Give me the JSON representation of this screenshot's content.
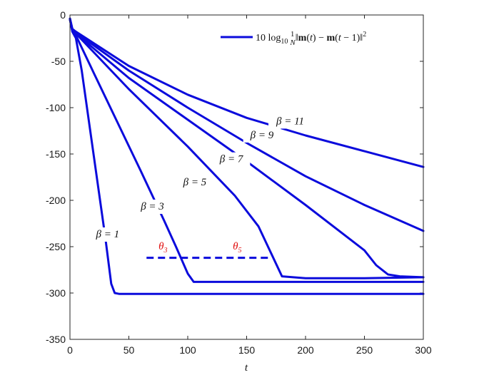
{
  "chart_data": {
    "type": "line",
    "title": "",
    "xlabel": "t",
    "ylabel": "",
    "xlim": [
      0,
      300
    ],
    "ylim": [
      -350,
      0
    ],
    "xticks": [
      0,
      50,
      100,
      150,
      200,
      250,
      300
    ],
    "yticks": [
      0,
      -50,
      -100,
      -150,
      -200,
      -250,
      -300,
      -350
    ],
    "legend": {
      "label": "10 log10 (1/N) ||m(t) − m(t−1)||²",
      "position": "top-right"
    },
    "series_color": "#0b0bdc",
    "series": [
      {
        "name": "β = 1",
        "x": [
          0,
          2,
          5,
          10,
          20,
          30,
          35,
          38,
          42,
          50,
          100,
          150,
          200,
          250,
          300
        ],
        "y": [
          -5,
          -18,
          -25,
          -60,
          -150,
          -240,
          -290,
          -300,
          -301,
          -301,
          -301,
          -301,
          -301,
          -301,
          -301
        ]
      },
      {
        "name": "β = 3",
        "x": [
          0,
          2,
          5,
          20,
          40,
          60,
          80,
          90,
          100,
          105,
          150,
          200,
          250,
          300
        ],
        "y": [
          -5,
          -17,
          -22,
          -62,
          -115,
          -168,
          -222,
          -250,
          -279,
          -288,
          -288,
          -288,
          -288,
          -288
        ]
      },
      {
        "name": "β = 5",
        "x": [
          0,
          2,
          5,
          50,
          100,
          140,
          160,
          170,
          180,
          200,
          250,
          300
        ],
        "y": [
          -4,
          -16,
          -20,
          -80,
          -142,
          -195,
          -228,
          -255,
          -282,
          -284,
          -284,
          -283
        ]
      },
      {
        "name": "β = 7",
        "x": [
          0,
          2,
          5,
          50,
          100,
          150,
          200,
          250,
          260,
          270,
          280,
          300
        ],
        "y": [
          -4,
          -16,
          -20,
          -68,
          -113,
          -158,
          -205,
          -254,
          -270,
          -280,
          -282,
          -283
        ]
      },
      {
        "name": "β = 9",
        "x": [
          0,
          2,
          5,
          50,
          100,
          150,
          200,
          250,
          300
        ],
        "y": [
          -4,
          -15,
          -19,
          -60,
          -100,
          -138,
          -174,
          -205,
          -233
        ]
      },
      {
        "name": "β = 11",
        "x": [
          0,
          2,
          5,
          50,
          100,
          150,
          200,
          250,
          300
        ],
        "y": [
          -4,
          -15,
          -18,
          -55,
          -86,
          -111,
          -130,
          -147,
          -164
        ]
      }
    ],
    "threshold": {
      "y": -262,
      "x_range": [
        65,
        170
      ],
      "style": "dashed"
    },
    "annotations": [
      {
        "text": "β = 1",
        "x": 32,
        "y": -240
      },
      {
        "text": "β = 3",
        "x": 70,
        "y": -210
      },
      {
        "text": "β = 5",
        "x": 106,
        "y": -184
      },
      {
        "text": "β = 7",
        "x": 137,
        "y": -159
      },
      {
        "text": "β = 9",
        "x": 163,
        "y": -133
      },
      {
        "text": "β = 11",
        "x": 187,
        "y": -118
      },
      {
        "text": "θ3",
        "x": 79,
        "y": -253,
        "color": "#e01010"
      },
      {
        "text": "θ5",
        "x": 142,
        "y": -253,
        "color": "#e01010"
      }
    ]
  }
}
